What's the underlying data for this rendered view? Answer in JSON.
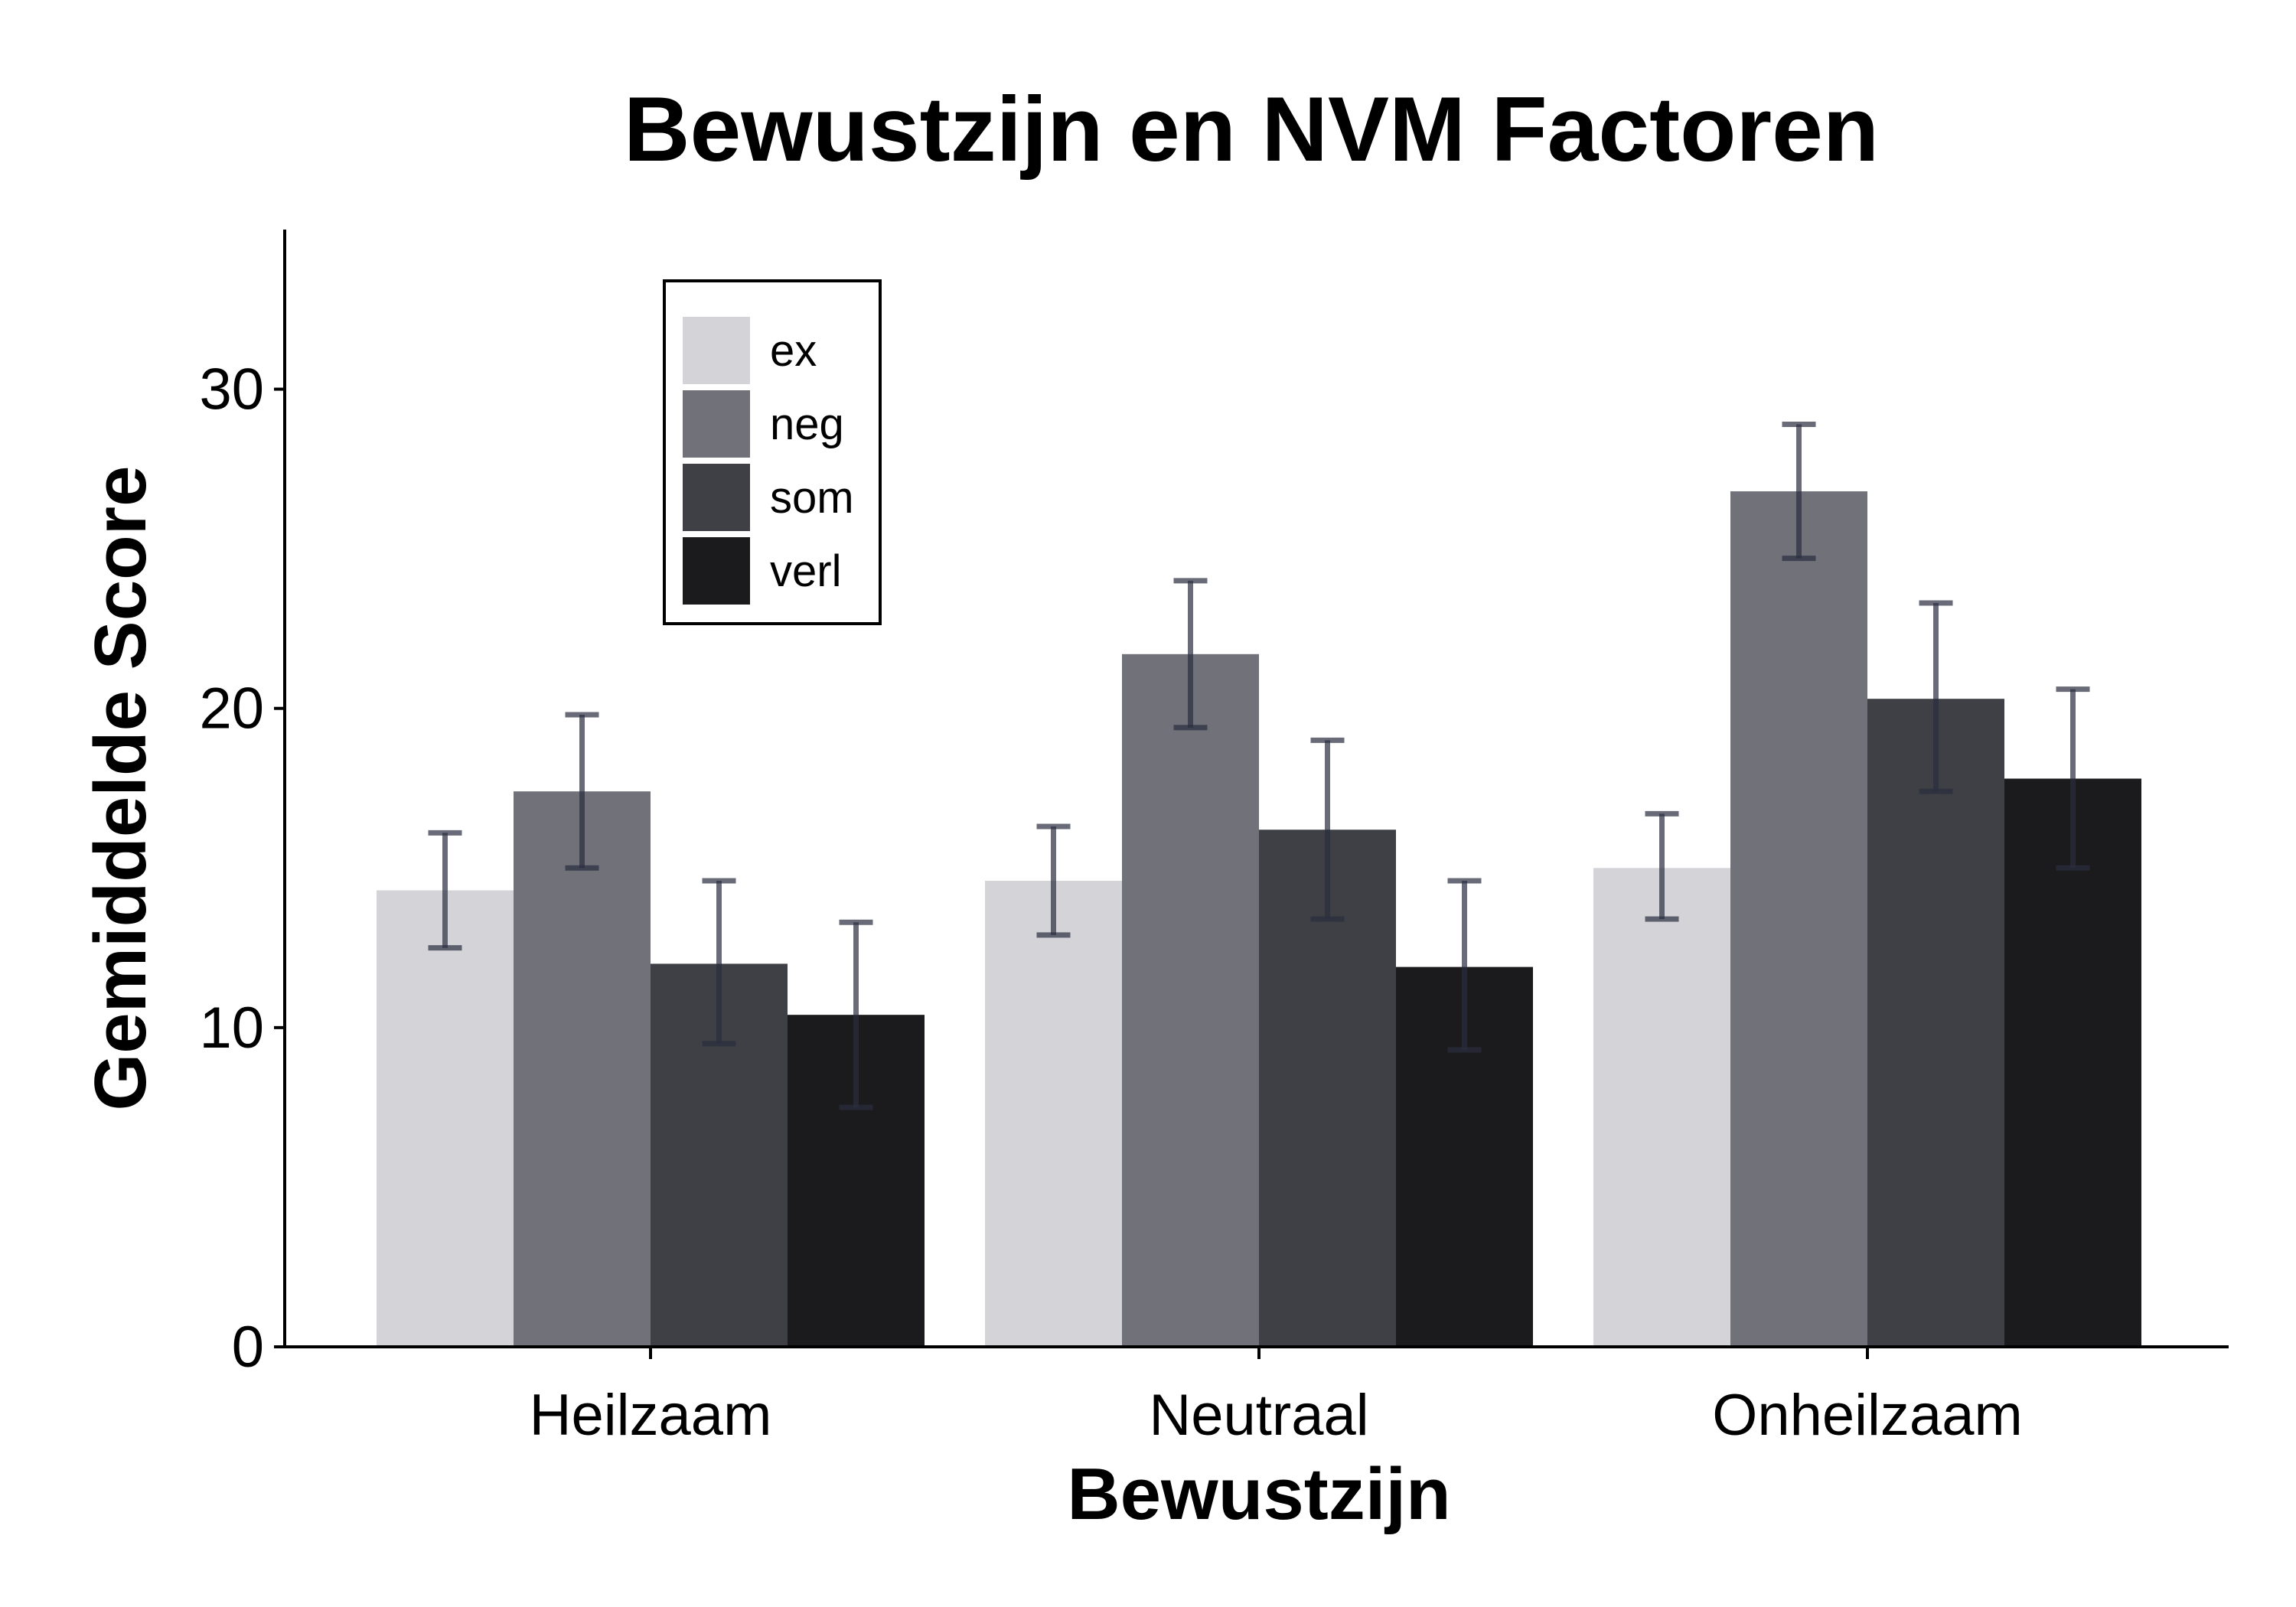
{
  "chart_data": {
    "type": "bar",
    "title": "Bewustzijn en NVM Factoren",
    "xlabel": "Bewustzijn",
    "ylabel": "Gemiddelde Score",
    "categories": [
      "Heilzaam",
      "Neutraal",
      "Onheilzaam"
    ],
    "ylim": [
      0,
      35
    ],
    "yticks": [
      "0",
      "10",
      "20",
      "30"
    ],
    "grid": false,
    "legend_position": "top-left",
    "series": [
      {
        "name": "ex",
        "color": "#d4d3d7",
        "values": [
          14.3,
          14.6,
          15.0
        ],
        "err_low": [
          12.5,
          12.9,
          13.4
        ],
        "err_high": [
          16.1,
          16.3,
          16.7
        ]
      },
      {
        "name": "neg",
        "color": "#71717a",
        "values": [
          17.4,
          21.7,
          26.8
        ],
        "err_low": [
          15.0,
          19.4,
          24.7
        ],
        "err_high": [
          19.8,
          24.0,
          28.9
        ]
      },
      {
        "name": "som",
        "color": "#3f4045",
        "values": [
          12.0,
          16.2,
          20.3
        ],
        "err_low": [
          9.5,
          13.4,
          17.4
        ],
        "err_high": [
          14.6,
          19.0,
          23.3
        ]
      },
      {
        "name": "verl",
        "color": "#1b1b1d",
        "values": [
          10.4,
          11.9,
          17.8
        ],
        "err_low": [
          7.5,
          9.3,
          15.0
        ],
        "err_high": [
          13.3,
          14.6,
          20.6
        ]
      }
    ],
    "errorbar_color": "#2a2e3f"
  }
}
